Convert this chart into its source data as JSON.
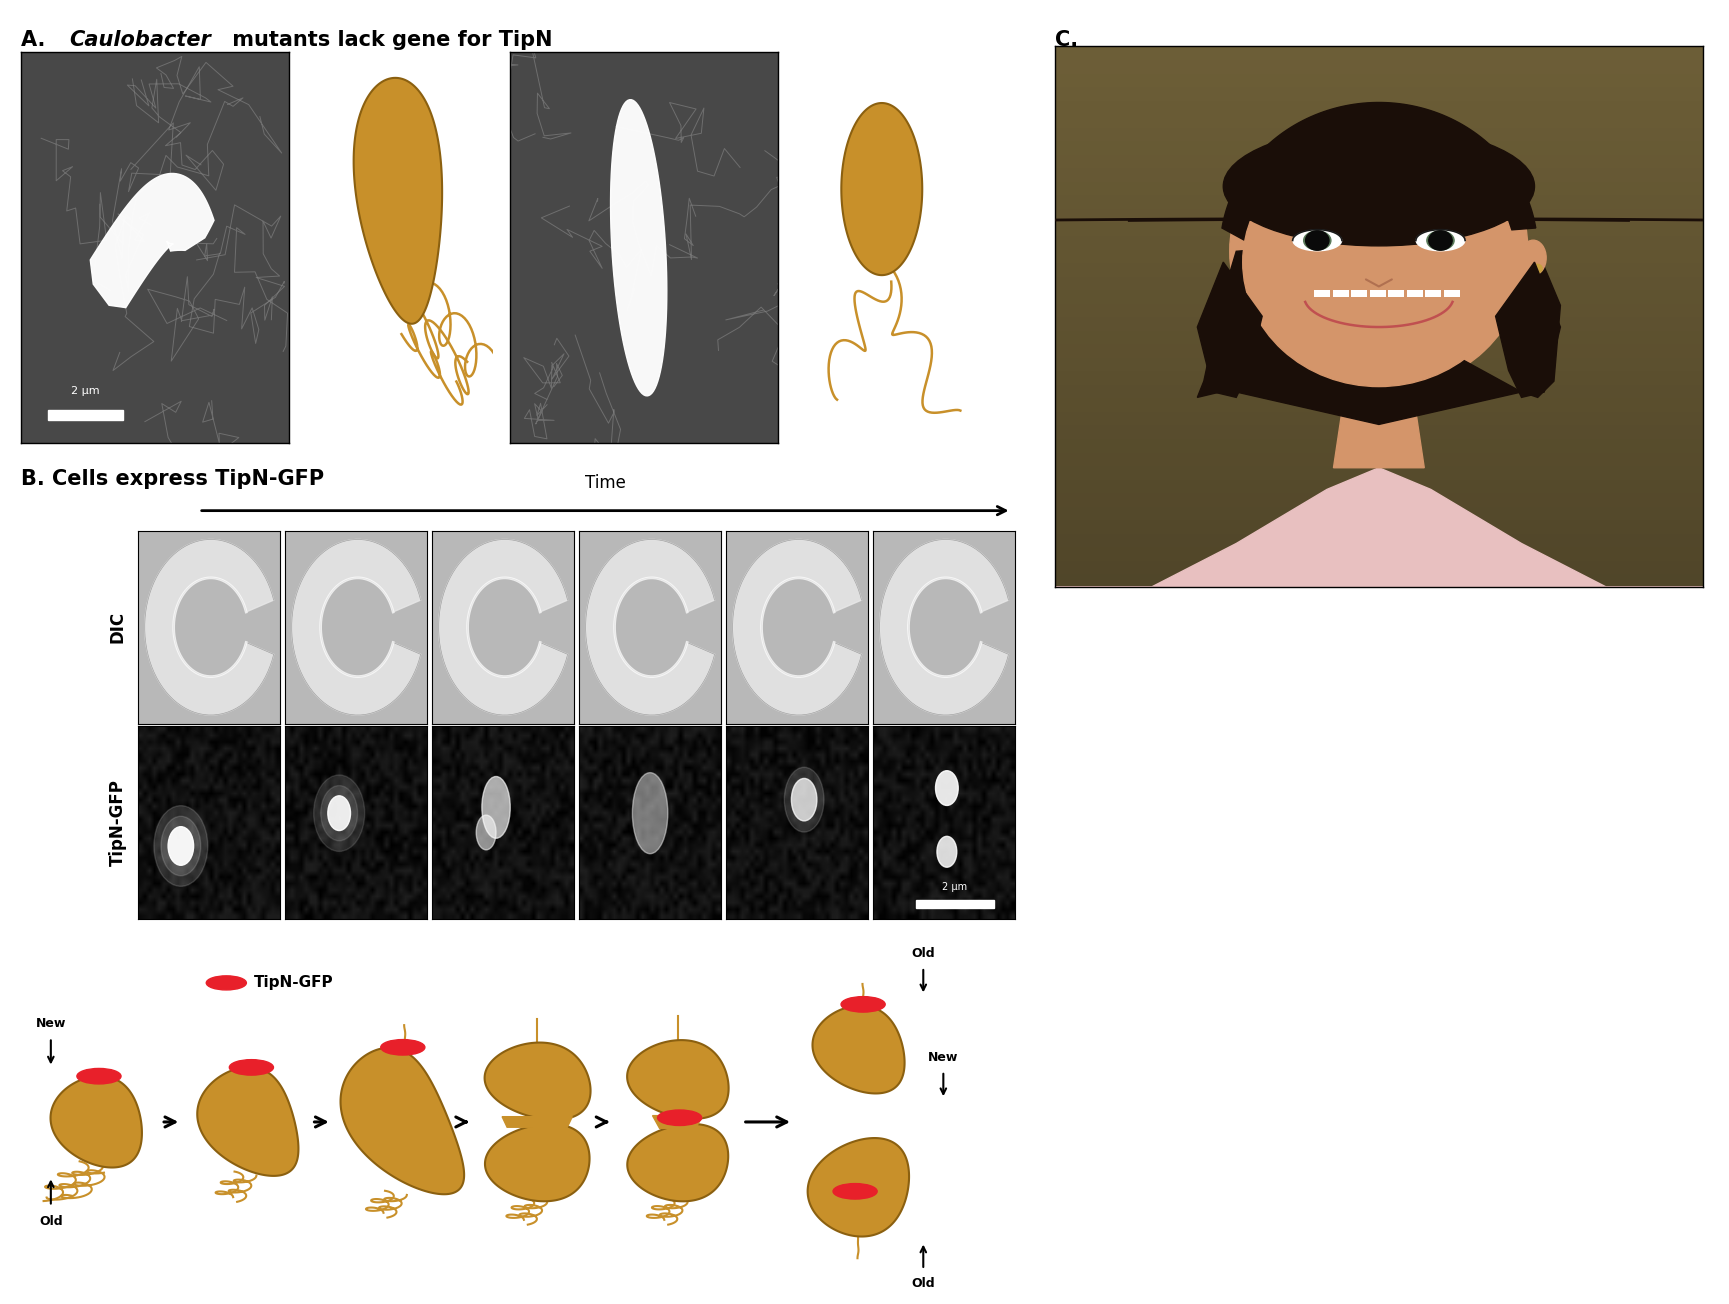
{
  "title_A_prefix": "A. ",
  "title_A_italic": "Caulobacter",
  "title_A_suffix": " mutants lack gene for TipN",
  "title_B": "B. Cells express TipN-GFP",
  "title_C": "C.",
  "label_DIC": "DIC",
  "label_GFP": "TipN-GFP",
  "label_time": "Time",
  "label_new": "New",
  "label_old": "Old",
  "label_tipn_gfp": "TipN-GFP",
  "scale_bar_text": "2 μm",
  "bg_color": "#ffffff",
  "cell_color": "#C8902A",
  "cell_edge_color": "#8B6010",
  "dot_color": "#E8202A",
  "mic_bg": "#4a4a4a",
  "gfp_bg": "#000000",
  "title_fontsize": 15,
  "label_fontsize": 12,
  "small_fontsize": 10
}
